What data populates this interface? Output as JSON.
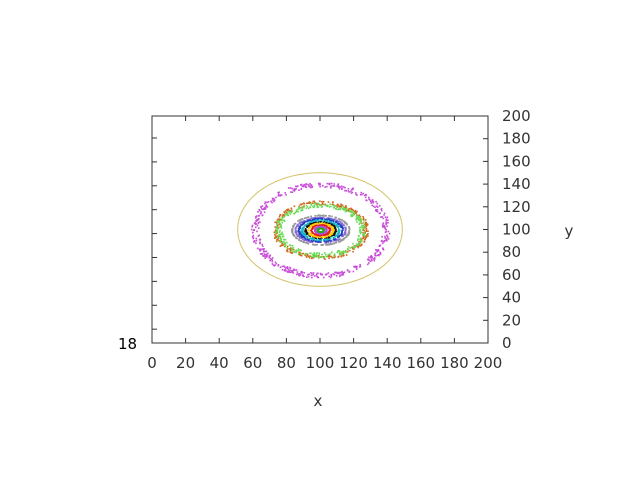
{
  "chart_data": {
    "type": "contour",
    "xlabel": "x",
    "ylabel": "y",
    "xlim": [
      0,
      200
    ],
    "ylim": [
      0,
      200
    ],
    "x_ticks": [
      "0",
      "20",
      "40",
      "60",
      "80",
      "100",
      "120",
      "140",
      "160",
      "180",
      "200"
    ],
    "y_ticks": [
      "0",
      "20",
      "40",
      "60",
      "80",
      "100",
      "120",
      "140",
      "160",
      "180",
      "200"
    ],
    "z_overlap_label": "18",
    "center": [
      100,
      100
    ],
    "levels": [
      {
        "color": "#d4c26a",
        "rx": 49,
        "ry": 50,
        "noise": 0.0
      },
      {
        "color": "#c84fd8",
        "rx": 39,
        "ry": 40,
        "noise": 2.2
      },
      {
        "color": "#d2691e",
        "rx": 27,
        "ry": 24,
        "noise": 1.8
      },
      {
        "color": "#66dd55",
        "rx": 25,
        "ry": 22,
        "noise": 2.0
      },
      {
        "color": "#999999",
        "rx": 17,
        "ry": 13,
        "noise": 0.3
      },
      {
        "color": "#8a6bd6",
        "rx": 15,
        "ry": 11,
        "noise": 0.4
      },
      {
        "color": "#1f3fbf",
        "rx": 13,
        "ry": 10,
        "noise": 0.5
      },
      {
        "color": "#0fb8c8",
        "rx": 11,
        "ry": 8.5,
        "noise": 0.5
      },
      {
        "color": "#111111",
        "rx": 9,
        "ry": 7,
        "noise": 0.5
      },
      {
        "color": "#ffd000",
        "rx": 7.5,
        "ry": 6,
        "noise": 0.5
      },
      {
        "color": "#e02020",
        "rx": 5.5,
        "ry": 4.5,
        "noise": 0.4
      },
      {
        "color": "#b04fd8",
        "rx": 3.5,
        "ry": 3,
        "noise": 0.3
      },
      {
        "color": "#22aa22",
        "rx": 1.8,
        "ry": 1.6,
        "noise": 0.2
      }
    ]
  }
}
